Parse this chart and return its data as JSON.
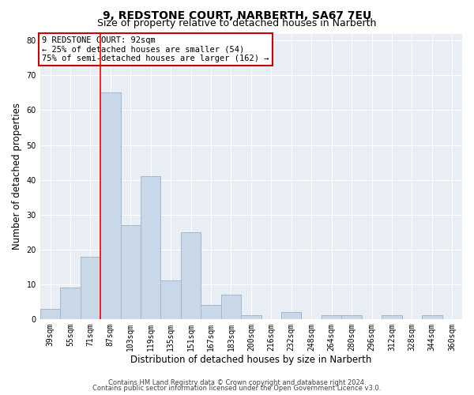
{
  "title1": "9, REDSTONE COURT, NARBERTH, SA67 7EU",
  "title2": "Size of property relative to detached houses in Narberth",
  "xlabel": "Distribution of detached houses by size in Narberth",
  "ylabel": "Number of detached properties",
  "categories": [
    "39sqm",
    "55sqm",
    "71sqm",
    "87sqm",
    "103sqm",
    "119sqm",
    "135sqm",
    "151sqm",
    "167sqm",
    "183sqm",
    "200sqm",
    "216sqm",
    "232sqm",
    "248sqm",
    "264sqm",
    "280sqm",
    "296sqm",
    "312sqm",
    "328sqm",
    "344sqm",
    "360sqm"
  ],
  "values": [
    3,
    9,
    18,
    65,
    27,
    41,
    11,
    25,
    4,
    7,
    1,
    0,
    2,
    0,
    1,
    1,
    0,
    1,
    0,
    1,
    0
  ],
  "bar_color": "#c8d8e8",
  "bar_edge_color": "#a0b8d0",
  "red_line_index": 3,
  "ylim": [
    0,
    82
  ],
  "yticks": [
    0,
    10,
    20,
    30,
    40,
    50,
    60,
    70,
    80
  ],
  "annotation_text": "9 REDSTONE COURT: 92sqm\n← 25% of detached houses are smaller (54)\n75% of semi-detached houses are larger (162) →",
  "annotation_box_color": "#ffffff",
  "annotation_box_edge": "#cc0000",
  "footer1": "Contains HM Land Registry data © Crown copyright and database right 2024.",
  "footer2": "Contains public sector information licensed under the Open Government Licence v3.0.",
  "background_color": "#e8eef4",
  "title1_fontsize": 10,
  "title2_fontsize": 9,
  "tick_fontsize": 7,
  "ylabel_fontsize": 8.5,
  "xlabel_fontsize": 8.5,
  "footer_fontsize": 6,
  "ann_fontsize": 7.5
}
